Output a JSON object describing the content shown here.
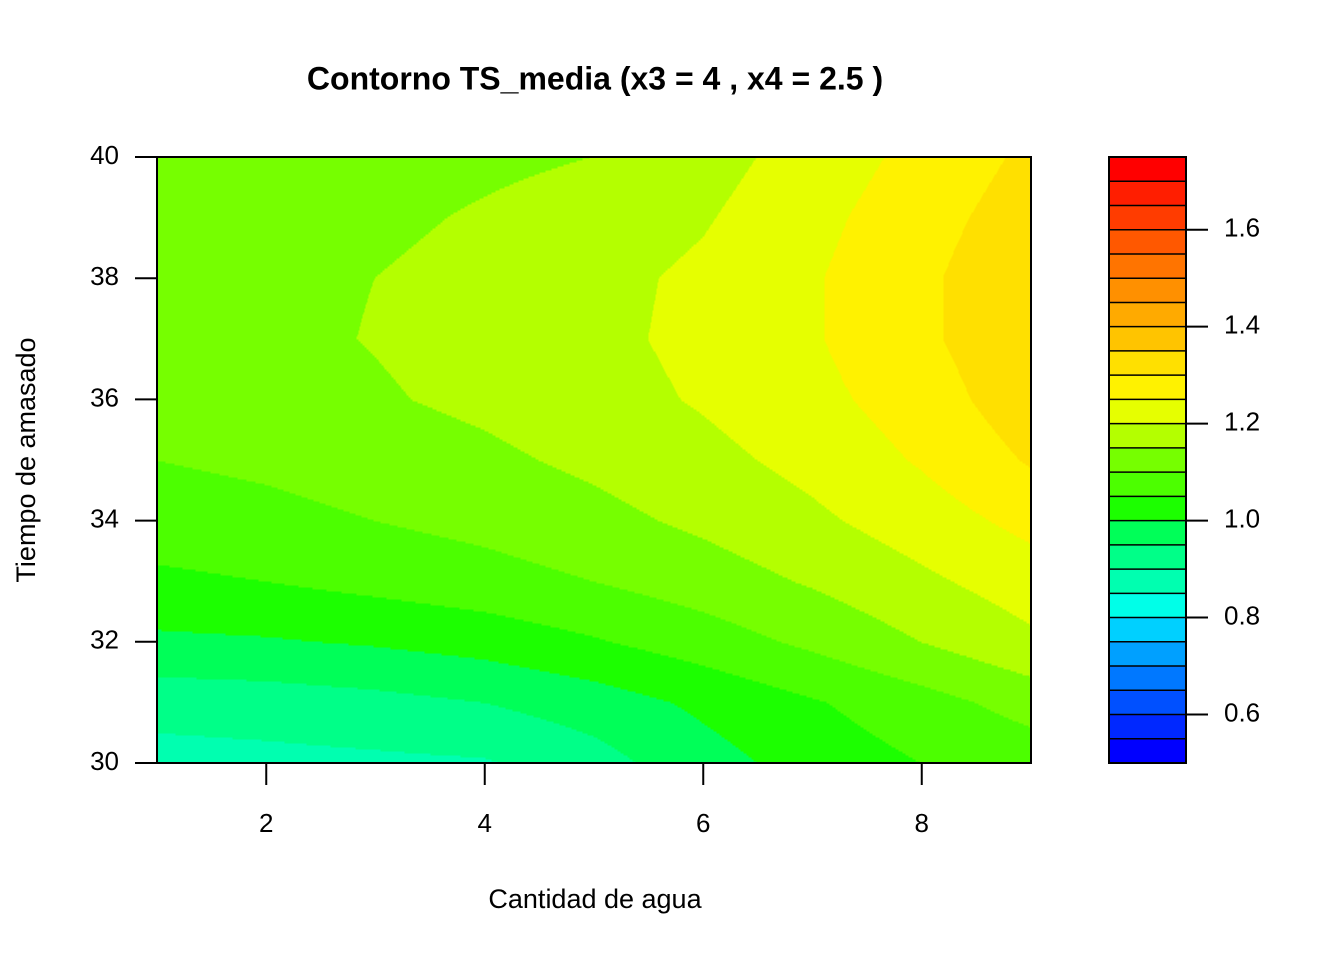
{
  "chart_data": {
    "type": "contour",
    "title": "Contorno TS_media (x3 = 4 , x4 = 2.5 )",
    "x_label": "Cantidad de agua",
    "y_label": "Tiempo de amasado",
    "x": [
      1,
      2,
      3,
      4,
      5,
      6,
      7,
      8,
      9
    ],
    "y": [
      30,
      31,
      32,
      33,
      34,
      35,
      36,
      37,
      38,
      39,
      40
    ],
    "z": [
      [
        0.88,
        0.885,
        0.89,
        0.895,
        0.93,
        0.98,
        1.02,
        1.05,
        1.07
      ],
      [
        0.92,
        0.925,
        0.935,
        0.95,
        0.975,
        1.01,
        1.045,
        1.08,
        1.12
      ],
      [
        0.99,
        0.995,
        1.005,
        1.02,
        1.045,
        1.075,
        1.11,
        1.15,
        1.19
      ],
      [
        1.04,
        1.05,
        1.065,
        1.08,
        1.1,
        1.125,
        1.155,
        1.19,
        1.225
      ],
      [
        1.075,
        1.085,
        1.1,
        1.115,
        1.135,
        1.16,
        1.19,
        1.225,
        1.265
      ],
      [
        1.1,
        1.11,
        1.125,
        1.14,
        1.16,
        1.185,
        1.215,
        1.255,
        1.305
      ],
      [
        1.12,
        1.13,
        1.145,
        1.16,
        1.18,
        1.205,
        1.235,
        1.275,
        1.33
      ],
      [
        1.13,
        1.14,
        1.152,
        1.167,
        1.187,
        1.213,
        1.245,
        1.29,
        1.34
      ],
      [
        1.13,
        1.14,
        1.15,
        1.165,
        1.185,
        1.21,
        1.245,
        1.29,
        1.34
      ],
      [
        1.12,
        1.13,
        1.14,
        1.155,
        1.17,
        1.195,
        1.235,
        1.28,
        1.325
      ],
      [
        1.11,
        1.12,
        1.13,
        1.14,
        1.15,
        1.18,
        1.22,
        1.265,
        1.31
      ]
    ],
    "xlim": [
      1,
      9
    ],
    "ylim": [
      30,
      40
    ],
    "xticks": [
      2,
      4,
      6,
      8
    ],
    "yticks": [
      30,
      32,
      34,
      36,
      38,
      40
    ],
    "levels": [
      0.5,
      0.55,
      0.6,
      0.65,
      0.7,
      0.75,
      0.8,
      0.85,
      0.9,
      0.95,
      1.0,
      1.05,
      1.1,
      1.15,
      1.2,
      1.25,
      1.3,
      1.35,
      1.4,
      1.45,
      1.5,
      1.55,
      1.6,
      1.65,
      1.7,
      1.75
    ],
    "colors": [
      "#0000FF",
      "#0028FF",
      "#0050FF",
      "#0078FF",
      "#00A0FF",
      "#00D0FF",
      "#00FFE8",
      "#00FFB0",
      "#00FF88",
      "#00FF58",
      "#1CFF00",
      "#4CFF00",
      "#76FF00",
      "#B4FF00",
      "#E6FF00",
      "#FFF200",
      "#FFE000",
      "#FFC400",
      "#FFAA00",
      "#FF9000",
      "#FF7400",
      "#FF5800",
      "#FF3C00",
      "#FF1E00",
      "#FF0000"
    ],
    "zticks": [
      0.6,
      0.8,
      {
        "value": 1,
        "label": "1.0"
      },
      1.2,
      1.4,
      1.6
    ]
  }
}
